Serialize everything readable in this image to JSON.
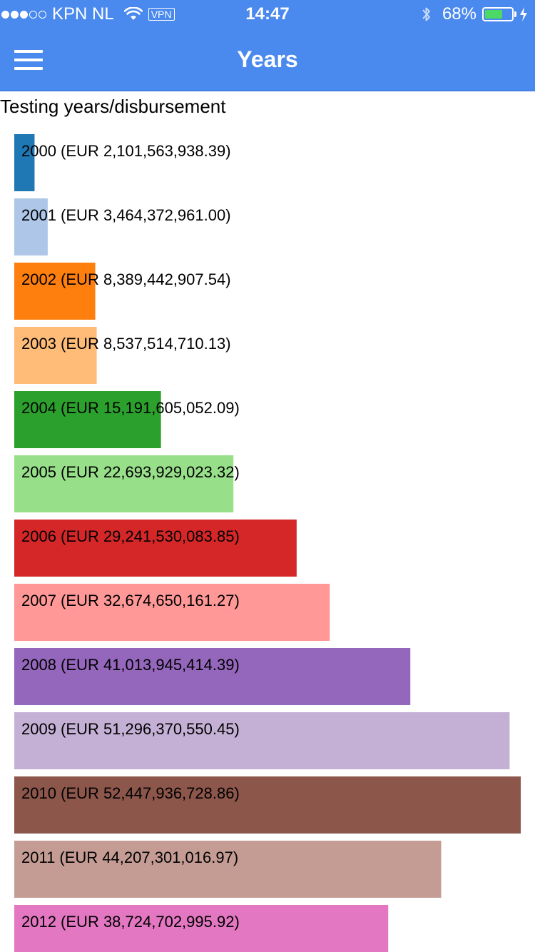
{
  "status_bar": {
    "signal_filled": 3,
    "signal_total": 5,
    "carrier": "KPN NL",
    "vpn_label": "VPN",
    "time": "14:47",
    "battery_percent_label": "68%",
    "battery_level": 0.68,
    "icons": [
      "wifi-icon",
      "bluetooth-icon",
      "battery-icon",
      "charging-bolt-icon"
    ]
  },
  "nav": {
    "title": "Years",
    "menu_icon": "hamburger-menu-icon"
  },
  "chart_data": {
    "type": "bar",
    "orientation": "horizontal",
    "title": "Testing years/disbursement",
    "categories": [
      "2000",
      "2001",
      "2002",
      "2003",
      "2004",
      "2005",
      "2006",
      "2007",
      "2008",
      "2009",
      "2010",
      "2011",
      "2012"
    ],
    "values": [
      2101563938.39,
      3464372961.0,
      8389442907.54,
      8537514710.13,
      15191605052.09,
      22693929023.32,
      29241530083.85,
      32674650161.27,
      41013945414.39,
      51296370550.45,
      52447936728.86,
      44207301016.97,
      38724702995.92
    ],
    "labels": [
      "2000 (EUR 2,101,563,938.39)",
      "2001 (EUR 3,464,372,961.00)",
      "2002 (EUR 8,389,442,907.54)",
      "2003 (EUR 8,537,514,710.13)",
      "2004 (EUR 15,191,605,052.09)",
      "2005 (EUR 22,693,929,023.32)",
      "2006 (EUR 29,241,530,083.85)",
      "2007 (EUR 32,674,650,161.27)",
      "2008 (EUR 41,013,945,414.39)",
      "2009 (EUR 51,296,370,550.45)",
      "2010 (EUR 52,447,936,728.86)",
      "2011 (EUR 44,207,301,016.97)",
      "2012 (EUR 38,724,702,995.92)"
    ],
    "colors": [
      "#1f77b4",
      "#aec7e8",
      "#ff7f0e",
      "#ffbb78",
      "#2ca02c",
      "#98df8a",
      "#d62728",
      "#ff9896",
      "#9467bd",
      "#c5b0d5",
      "#8c564b",
      "#c49c94",
      "#e377c2"
    ],
    "xlim": [
      0,
      52447936728.86
    ],
    "grid": false,
    "legend": "none"
  }
}
